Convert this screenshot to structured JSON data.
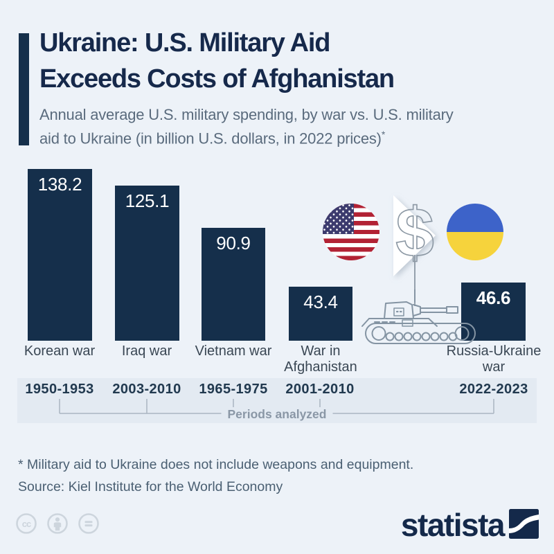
{
  "page": {
    "background": "#EDF2F8",
    "accent_navy": "#152F4B"
  },
  "header": {
    "title_line1": "Ukraine: U.S. Military Aid",
    "title_line2": "Exceeds Costs of Afghanistan",
    "subtitle_line1": "Annual average U.S. military spending, by war vs. U.S. military",
    "subtitle_line2": "aid to Ukraine (in billion U.S. dollars, in 2022 prices)",
    "footnote_marker": "*"
  },
  "chart_data": {
    "type": "bar",
    "title": "Ukraine: U.S. Military Aid Exceeds Costs of Afghanistan",
    "subtitle": "Annual average U.S. military spending, by war vs. U.S. military aid to Ukraine (in billion U.S. dollars, in 2022 prices)*",
    "unit": "billion U.S. dollars, 2022 prices",
    "categories": [
      "Korean war",
      "Iraq war",
      "Vietnam war",
      "War in Afghanistan",
      "Russia-Ukraine war"
    ],
    "values": [
      138.2,
      125.1,
      90.9,
      43.4,
      46.6
    ],
    "periods": [
      "1950-1953",
      "2003-2010",
      "1965-1975",
      "2001-2010",
      "2022-2023"
    ],
    "periods_axis_label": "Periods analyzed",
    "bar_color": "#152F4B",
    "value_label_color": "#FFFFFF",
    "ylim": [
      0,
      140
    ],
    "grid": false,
    "legend": false
  },
  "illustration": {
    "dollar_sign": "$",
    "us_flag": {
      "red": "#B22234",
      "canton_blue": "#3C3B6E",
      "white": "#FFFFFF"
    },
    "ukraine_flag": {
      "blue": "#3D63C9",
      "yellow": "#F6D33C"
    },
    "outline_color": "#8494A3"
  },
  "footer": {
    "footnote": "* Military aid to Ukraine does not include weapons and equipment.",
    "source": "Source: Kiel Institute for the World Economy",
    "license_icons": [
      "cc",
      "attribution",
      "nd"
    ],
    "brand_name": "statista"
  }
}
